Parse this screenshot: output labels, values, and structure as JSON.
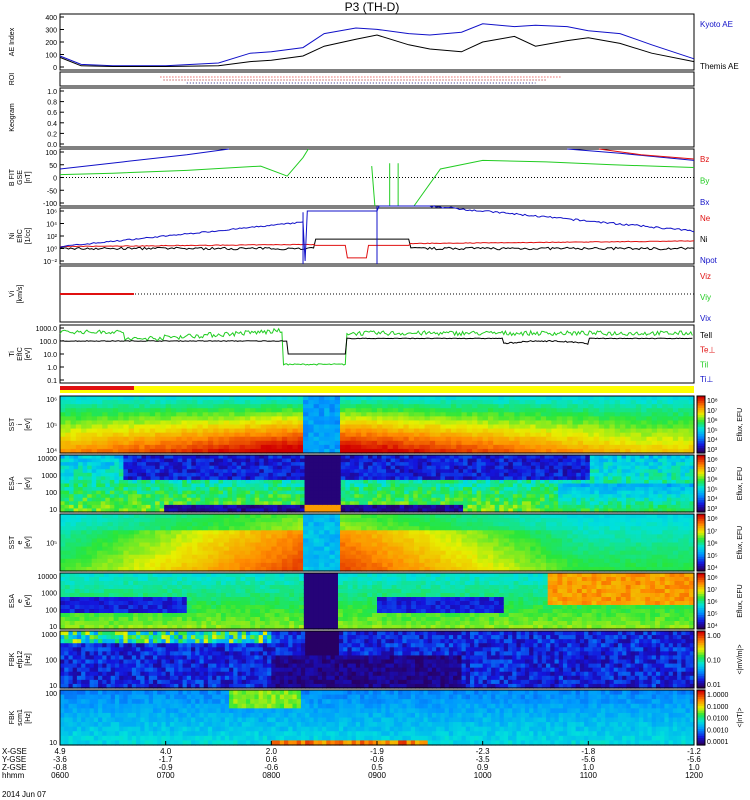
{
  "chart_data": {
    "type": "multi-panel",
    "title": "P3 (TH-D)",
    "date": "2014 Jun 07",
    "colors": {
      "blue": "#1010c8",
      "black": "#000000",
      "red": "#e01010",
      "green": "#22cc22"
    },
    "panels": [
      {
        "id": "ae",
        "ylabel": "AE Index",
        "ytick_labels": [
          "400",
          "300",
          "200",
          "100",
          "0"
        ],
        "ylim": [
          0,
          400
        ],
        "legend": [
          {
            "label": "Kyoto AE",
            "color": "#1010c8"
          },
          {
            "label": "Themis AE",
            "color": "#000000"
          }
        ],
        "series": [
          {
            "name": "Kyoto AE",
            "x": [
              6.0,
              6.2,
              6.5,
              7.0,
              7.5,
              7.8,
              8.0,
              8.3,
              8.5,
              8.8,
              9.0,
              9.3,
              9.5,
              9.8,
              10.0,
              10.3,
              10.5,
              10.8,
              11.0,
              11.3,
              11.6,
              12.0
            ],
            "values": [
              100,
              40,
              30,
              30,
              50,
              120,
              130,
              160,
              260,
              300,
              290,
              260,
              250,
              270,
              330,
              310,
              320,
              310,
              280,
              260,
              180,
              80
            ]
          },
          {
            "name": "Themis AE",
            "x": [
              6.0,
              6.2,
              6.5,
              7.0,
              7.5,
              7.8,
              8.0,
              8.3,
              8.5,
              8.8,
              9.0,
              9.3,
              9.5,
              9.8,
              10.0,
              10.3,
              10.5,
              10.8,
              11.0,
              11.3,
              11.6,
              12.0
            ],
            "values": [
              90,
              30,
              25,
              25,
              30,
              60,
              70,
              100,
              170,
              220,
              250,
              180,
              150,
              130,
              200,
              240,
              170,
              210,
              230,
              190,
              120,
              60
            ]
          }
        ]
      },
      {
        "id": "roi",
        "ylabel": "ROI",
        "ytick_labels": []
      },
      {
        "id": "keogram",
        "ylabel": "Keogram",
        "ytick_labels": [
          "1.0",
          "0.8",
          "0.6",
          "0.4",
          "0.2",
          "0.0"
        ],
        "ylim": [
          0,
          1
        ]
      },
      {
        "id": "bfield",
        "ylabel": "B FIT\nGSE\n[nT]",
        "ytick_labels": [
          "100",
          "50",
          "0",
          "-50",
          "-100"
        ],
        "ylim": [
          -100,
          100
        ],
        "legend": [
          {
            "label": "Bz",
            "color": "#e01010"
          },
          {
            "label": "By",
            "color": "#22cc22"
          },
          {
            "label": "Bx",
            "color": "#1010c8"
          }
        ]
      },
      {
        "id": "density",
        "ylabel": "Ni\nEfIC\n[1/cc]",
        "ytick_labels": [
          "10⁶",
          "10⁴",
          "10²",
          "10⁰",
          "10⁻²"
        ],
        "legend": [
          {
            "label": "Ne",
            "color": "#e01010"
          },
          {
            "label": "Ni",
            "color": "#000000"
          },
          {
            "label": "Npot",
            "color": "#1010c8"
          }
        ]
      },
      {
        "id": "velocity",
        "ylabel": "Vi\n[km/s]",
        "ytick_labels": [],
        "legend": [
          {
            "label": "Viz",
            "color": "#e01010"
          },
          {
            "label": "Viy",
            "color": "#22cc22"
          },
          {
            "label": "Vix",
            "color": "#1010c8"
          }
        ]
      },
      {
        "id": "temperature",
        "ylabel": "Ti\nEfIC\n[eV]",
        "ytick_labels": [
          "1000.0",
          "100.0",
          "10.0",
          "1.0",
          "0.1"
        ],
        "legend": [
          {
            "label": "Tell",
            "color": "#000000"
          },
          {
            "label": "Te⊥",
            "color": "#e01010"
          },
          {
            "label": "Til",
            "color": "#22cc22"
          },
          {
            "label": "Ti⊥",
            "color": "#1010c8"
          }
        ]
      },
      {
        "id": "sst_i",
        "ylabel": "SST\ni\n[eV]",
        "ytick_labels": [
          "10⁶",
          "10⁵",
          "10⁴"
        ],
        "spectrogram": true
      },
      {
        "id": "esa_i",
        "ylabel": "ESA\ni\n[eV]",
        "ytick_labels": [
          "10000",
          "1000",
          "100",
          "10"
        ],
        "spectrogram": true
      },
      {
        "id": "sst_e",
        "ylabel": "SST\ne\n[eV]",
        "ytick_labels": [
          "10⁵"
        ],
        "spectrogram": true
      },
      {
        "id": "esa_e",
        "ylabel": "ESA\ne\n[eV]",
        "ytick_labels": [
          "10000",
          "1000",
          "100",
          "10"
        ],
        "spectrogram": true
      },
      {
        "id": "fbk_e",
        "ylabel": "FBK\nefp12\n[Hz]",
        "ytick_labels": [
          "1000",
          "100",
          "10"
        ],
        "spectrogram": true
      },
      {
        "id": "fbk_b",
        "ylabel": "FBK\nscm1\n[Hz]",
        "ytick_labels": [
          "100",
          "10"
        ],
        "spectrogram": true
      }
    ],
    "colorbars": [
      {
        "label": "Eflux, EFU",
        "ticks": [
          "10⁸",
          "10⁷",
          "10⁶",
          "10⁵",
          "10⁴",
          "10³"
        ]
      },
      {
        "label": "Eflux, EFU",
        "ticks": [
          "10⁸",
          "10⁷",
          "10⁶",
          "10⁵",
          "10⁴",
          "10³"
        ]
      },
      {
        "label": "Eflux, EFU",
        "ticks": [
          "10⁸",
          "10⁷",
          "10⁶",
          "10⁵",
          "10⁴"
        ]
      },
      {
        "label": "Eflux, EFU",
        "ticks": [
          "10⁸",
          "10⁷",
          "10⁶",
          "10⁵",
          "10⁴"
        ]
      },
      {
        "label": "<|mV/m|>",
        "ticks": [
          "1.00",
          "0.10",
          "0.01"
        ]
      },
      {
        "label": "<|nT|>",
        "ticks": [
          "1.0000",
          "0.1000",
          "0.0100",
          "0.0010",
          "0.0001"
        ]
      }
    ],
    "x_axis": {
      "row_labels": [
        "X-GSE",
        "Y-GSE",
        "Z-GSE",
        "hhmm"
      ],
      "ticks": [
        {
          "x": "4.9",
          "y": "-3.6",
          "z": "-0.8",
          "time": "0600"
        },
        {
          "x": "4.0",
          "y": "-1.7",
          "z": "-0.9",
          "time": "0700"
        },
        {
          "x": "2.0",
          "y": "0.6",
          "z": "-0.6",
          "time": "0800"
        },
        {
          "x": "-1.9",
          "y": "-0.6",
          "z": "0.5",
          "time": "0900"
        },
        {
          "x": "-2.3",
          "y": "-3.5",
          "z": "0.9",
          "time": "1000"
        },
        {
          "x": "-1.8",
          "y": "-5.6",
          "z": "1.0",
          "time": "1100"
        },
        {
          "x": "-1.2",
          "y": "-5.6",
          "z": "1.0",
          "time": "1200"
        }
      ]
    }
  }
}
